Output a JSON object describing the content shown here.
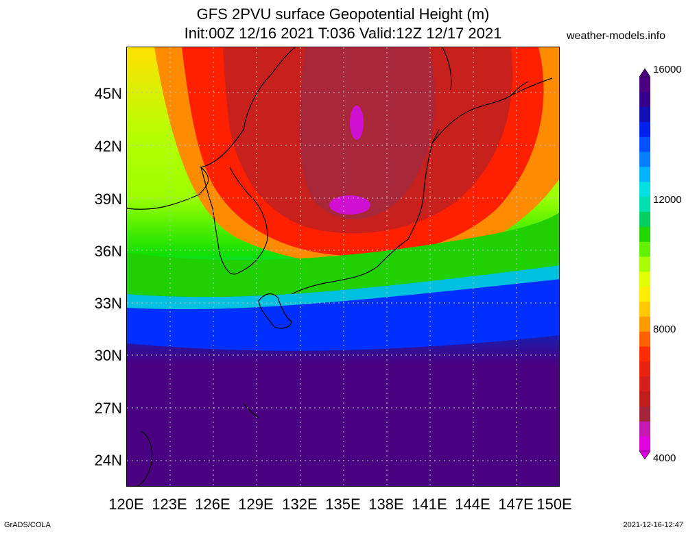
{
  "header": {
    "title_line1": "GFS 2PVU surface Geopotential Height (m)",
    "title_line2": "Init:00Z 12/16 2021 T:036 Valid:12Z 12/17 2021",
    "site": "weather-models.info"
  },
  "map": {
    "y_ticks": [
      "45N",
      "42N",
      "39N",
      "36N",
      "33N",
      "30N",
      "27N",
      "24N"
    ],
    "x_ticks": [
      "120E",
      "123E",
      "126E",
      "129E",
      "132E",
      "135E",
      "138E",
      "141E",
      "144E",
      "147E",
      "150E"
    ],
    "lat_range": [
      22.5,
      47.6
    ],
    "lon_range": [
      120,
      150
    ],
    "grid": true
  },
  "colorbar": {
    "labels": [
      "16000",
      "12000",
      "8000",
      "4000"
    ],
    "min": 4000,
    "max": 16000,
    "colors": [
      "#e000e0",
      "#c418b0",
      "#a5243c",
      "#c21d1d",
      "#d62020",
      "#ea2210",
      "#ff2c00",
      "#ff6000",
      "#ff9a00",
      "#ffc800",
      "#ffee00",
      "#e0ff00",
      "#a8ff00",
      "#60f000",
      "#20d800",
      "#00d060",
      "#00e0b0",
      "#00e0e0",
      "#00b4ff",
      "#0080ff",
      "#0050ff",
      "#0020ef",
      "#1010b4",
      "#36008c",
      "#4b0082"
    ]
  },
  "footer": {
    "left": "GrADS/COLA",
    "right": "2021-12-16-12:47"
  }
}
